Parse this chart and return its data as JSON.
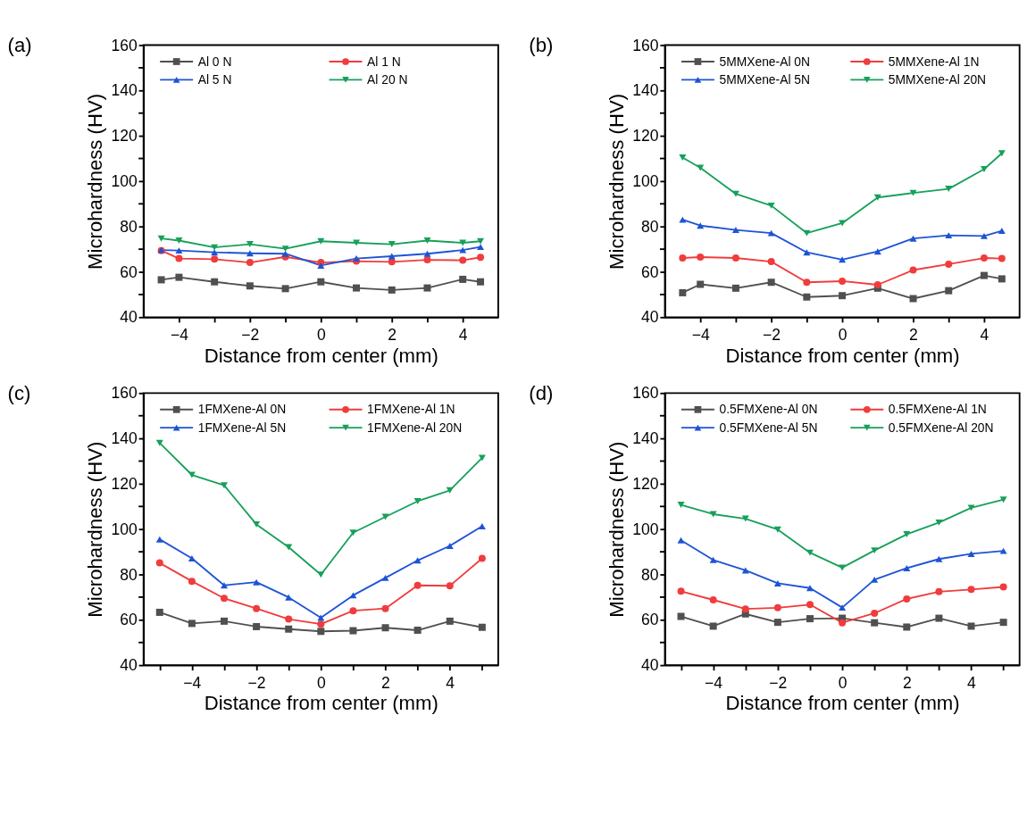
{
  "chart_data": [
    {
      "type": "line",
      "title": "(a)",
      "xlabel": "Distance from center (mm)",
      "ylabel": "Microhardness (HV)",
      "x": [
        -4.5,
        -4,
        -3,
        -2,
        -1,
        0,
        1,
        2,
        3,
        4,
        4.5
      ],
      "xlim": [
        -5,
        5
      ],
      "xticks": [
        -4,
        {
          "value": -3,
          "label": null
        },
        -2,
        {
          "value": -1,
          "label": null
        },
        0,
        {
          "value": 1,
          "label": null
        },
        2,
        {
          "value": 3,
          "label": null
        },
        4
      ],
      "ylim": [
        40,
        160
      ],
      "yticks": [
        40,
        {
          "value": 50,
          "label": null
        },
        60,
        {
          "value": 70,
          "label": null
        },
        80,
        {
          "value": 90,
          "label": null
        },
        100,
        {
          "value": 110,
          "label": null
        },
        120,
        {
          "value": 130,
          "label": null
        },
        140,
        {
          "value": 150,
          "label": null
        },
        160
      ],
      "grid": false,
      "legend": "top",
      "line_style": "solid",
      "series": [
        {
          "name": "Al 0 N",
          "color": "#505050",
          "marker": "square",
          "values": [
            56.5,
            57.6,
            55.6,
            53.8,
            52.6,
            55.6,
            52.9,
            52.0,
            52.9,
            56.7,
            55.6
          ]
        },
        {
          "name": "Al 1 N",
          "color": "#f03c3c",
          "marker": "circle",
          "values": [
            69.4,
            65.9,
            65.6,
            64.1,
            66.6,
            64.1,
            64.7,
            64.4,
            65.3,
            65.1,
            66.4
          ]
        },
        {
          "name": "Al 5 N",
          "color": "#1d54d6",
          "marker": "triangle",
          "values": [
            69.6,
            69.4,
            68.6,
            68.2,
            68.0,
            62.8,
            65.9,
            66.9,
            68.0,
            69.6,
            71.0
          ]
        },
        {
          "name": "Al 20 N",
          "color": "#17a05a",
          "marker": "triangle-down",
          "values": [
            74.7,
            73.8,
            70.8,
            72.2,
            70.2,
            73.5,
            72.8,
            72.2,
            73.8,
            72.8,
            73.5
          ]
        }
      ]
    },
    {
      "type": "line",
      "title": "(b)",
      "xlabel": "Distance from center (mm)",
      "ylabel": "Microhardness (HV)",
      "x": [
        -4.5,
        -4,
        -3,
        -2,
        -1,
        0,
        1,
        2,
        3,
        4,
        4.5
      ],
      "xlim": [
        -5,
        5
      ],
      "xticks": [
        -4,
        {
          "value": -3,
          "label": null
        },
        -2,
        {
          "value": -1,
          "label": null
        },
        0,
        {
          "value": 1,
          "label": null
        },
        2,
        {
          "value": 3,
          "label": null
        },
        4
      ],
      "ylim": [
        40,
        160
      ],
      "yticks": [
        40,
        {
          "value": 50,
          "label": null
        },
        60,
        {
          "value": 70,
          "label": null
        },
        80,
        {
          "value": 90,
          "label": null
        },
        100,
        {
          "value": 110,
          "label": null
        },
        120,
        {
          "value": 130,
          "label": null
        },
        140,
        {
          "value": 150,
          "label": null
        },
        160
      ],
      "grid": false,
      "legend": "top",
      "line_style": "solid",
      "series": [
        {
          "name": "5MMXene-Al 0N",
          "color": "#505050",
          "marker": "square",
          "values": [
            50.8,
            54.5,
            52.8,
            55.4,
            48.9,
            49.5,
            52.8,
            48.2,
            51.7,
            58.4,
            56.9
          ]
        },
        {
          "name": "5MMXene-Al 1N",
          "color": "#f03c3c",
          "marker": "circle",
          "values": [
            66.1,
            66.5,
            66.1,
            64.5,
            55.4,
            55.9,
            54.3,
            60.8,
            63.4,
            66.1,
            65.9
          ]
        },
        {
          "name": "5MMXene-Al 5N",
          "color": "#1d54d6",
          "marker": "triangle",
          "values": [
            83.0,
            80.4,
            78.5,
            77.1,
            68.6,
            65.4,
            69.0,
            74.7,
            76.1,
            75.8,
            78.1
          ]
        },
        {
          "name": "5MMXene-Al 20N",
          "color": "#17a05a",
          "marker": "triangle-down",
          "values": [
            110.4,
            105.9,
            94.4,
            89.2,
            77.1,
            81.5,
            92.8,
            94.8,
            96.6,
            105.3,
            112.3
          ]
        }
      ]
    },
    {
      "type": "line",
      "title": "(c)",
      "xlabel": "Distance from center (mm)",
      "ylabel": "Microhardness (HV)",
      "x": [
        -5,
        -4,
        -3,
        -2,
        -1,
        0,
        1,
        2,
        3,
        4,
        5
      ],
      "xlim": [
        -5.5,
        5.5
      ],
      "xticks": [
        {
          "value": -5,
          "label": null
        },
        -4,
        {
          "value": -3,
          "label": null
        },
        -2,
        {
          "value": -1,
          "label": null
        },
        0,
        {
          "value": 1,
          "label": null
        },
        2,
        {
          "value": 3,
          "label": null
        },
        4,
        {
          "value": 5,
          "label": null
        }
      ],
      "ylim": [
        40,
        160
      ],
      "yticks": [
        40,
        {
          "value": 50,
          "label": null
        },
        60,
        {
          "value": 70,
          "label": null
        },
        80,
        {
          "value": 90,
          "label": null
        },
        100,
        {
          "value": 110,
          "label": null
        },
        120,
        {
          "value": 130,
          "label": null
        },
        140,
        {
          "value": 150,
          "label": null
        },
        160
      ],
      "grid": false,
      "legend": "top",
      "line_style": "solid",
      "series": [
        {
          "name": "1FMXene-Al 0N",
          "color": "#505050",
          "marker": "square",
          "values": [
            63.3,
            58.4,
            59.4,
            57.0,
            55.9,
            54.9,
            55.2,
            56.5,
            55.4,
            59.4,
            56.7
          ]
        },
        {
          "name": "1FMXene-Al 1N",
          "color": "#f03c3c",
          "marker": "circle",
          "values": [
            85.1,
            77.0,
            69.5,
            65.0,
            60.3,
            58.1,
            64.0,
            65.0,
            75.2,
            75.0,
            87.1
          ]
        },
        {
          "name": "1FMXene-Al 5N",
          "color": "#1d54d6",
          "marker": "triangle",
          "values": [
            95.5,
            87.1,
            75.2,
            76.6,
            69.9,
            60.9,
            70.8,
            78.5,
            86.2,
            92.6,
            101.3
          ]
        },
        {
          "name": "1FMXene-Al 20N",
          "color": "#17a05a",
          "marker": "triangle-down",
          "values": [
            138.0,
            123.9,
            119.3,
            102.1,
            92.0,
            79.9,
            98.4,
            105.4,
            112.3,
            117.1,
            131.4
          ]
        }
      ]
    },
    {
      "type": "line",
      "title": "(d)",
      "xlabel": "Distance from center (mm)",
      "ylabel": "Microhardness (HV)",
      "x": [
        -5,
        -4,
        -3,
        -2,
        -1,
        0,
        1,
        2,
        3,
        4,
        5
      ],
      "xlim": [
        -5.5,
        5.5
      ],
      "xticks": [
        {
          "value": -5,
          "label": null
        },
        -4,
        {
          "value": -3,
          "label": null
        },
        -2,
        {
          "value": -1,
          "label": null
        },
        0,
        {
          "value": 1,
          "label": null
        },
        2,
        {
          "value": 3,
          "label": null
        },
        4,
        {
          "value": 5,
          "label": null
        }
      ],
      "ylim": [
        40,
        160
      ],
      "yticks": [
        40,
        {
          "value": 50,
          "label": null
        },
        60,
        {
          "value": 70,
          "label": null
        },
        80,
        {
          "value": 90,
          "label": null
        },
        100,
        {
          "value": 110,
          "label": null
        },
        120,
        {
          "value": 130,
          "label": null
        },
        140,
        {
          "value": 150,
          "label": null
        },
        160
      ],
      "grid": false,
      "legend": "top",
      "line_style": "solid",
      "series": [
        {
          "name": "0.5FMXene-Al 0N",
          "color": "#505050",
          "marker": "square",
          "values": [
            61.5,
            57.2,
            62.6,
            58.9,
            60.5,
            60.7,
            58.7,
            56.8,
            60.7,
            57.2,
            58.9
          ]
        },
        {
          "name": "0.5FMXene-Al 1N",
          "color": "#f03c3c",
          "marker": "circle",
          "values": [
            72.6,
            68.8,
            64.8,
            65.3,
            66.7,
            58.7,
            62.9,
            69.2,
            72.4,
            73.4,
            74.5
          ]
        },
        {
          "name": "0.5FMXene-Al 5N",
          "color": "#1d54d6",
          "marker": "triangle",
          "values": [
            95.1,
            86.4,
            81.8,
            76.1,
            74.0,
            65.4,
            77.7,
            82.8,
            86.8,
            89.1,
            90.4
          ]
        },
        {
          "name": "0.5FMXene-Al 20N",
          "color": "#17a05a",
          "marker": "triangle-down",
          "values": [
            110.7,
            106.6,
            104.6,
            99.8,
            89.6,
            83.0,
            90.6,
            97.7,
            102.9,
            109.4,
            113.0
          ]
        }
      ]
    }
  ]
}
